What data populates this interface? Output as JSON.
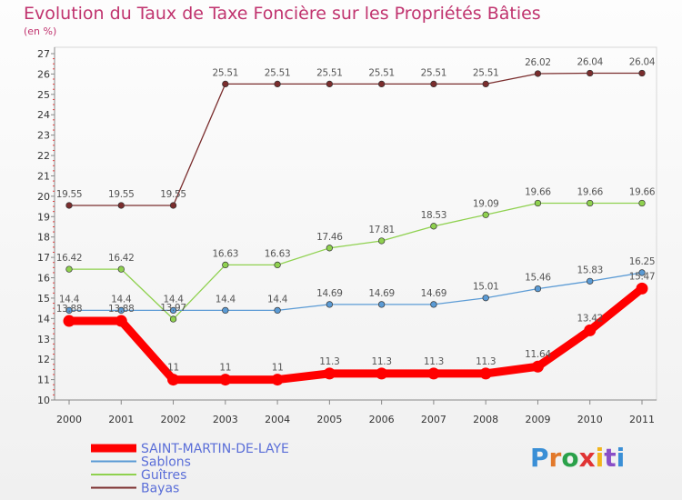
{
  "header": {
    "title": "Evolution du Taux de Taxe Foncière sur les Propriétés Bâties",
    "subtitle": "(en %)"
  },
  "brand": {
    "text": "Proxiti",
    "letter_colors": [
      "#3a8fd6",
      "#e2792b",
      "#2aa14a",
      "#e03434",
      "#f2b51c",
      "#8a4fc7",
      "#3a8fd6"
    ]
  },
  "chart_data": {
    "type": "line",
    "title": "Evolution du Taux de Taxe Foncière sur les Propriétés Bâties",
    "ylabel": "(en %)",
    "xlabel": "",
    "x": [
      "2000",
      "2001",
      "2002",
      "2003",
      "2004",
      "2005",
      "2006",
      "2007",
      "2008",
      "2009",
      "2010",
      "2011"
    ],
    "ylim": [
      10,
      27
    ],
    "yticks": [
      10,
      11,
      12,
      13,
      14,
      15,
      16,
      17,
      18,
      19,
      20,
      21,
      22,
      23,
      24,
      25,
      26,
      27
    ],
    "grid": false,
    "legend_position": "bottom-left",
    "series": [
      {
        "name": "SAINT-MARTIN-DE-LAYE",
        "color": "#ff0000",
        "values": [
          13.88,
          13.88,
          11,
          11,
          11,
          11.3,
          11.3,
          11.3,
          11.3,
          11.64,
          13.42,
          15.47
        ],
        "labels": [
          "13.88",
          "13.88",
          "11",
          "11",
          "11",
          "11.3",
          "11.3",
          "11.3",
          "11.3",
          "11.64",
          "13.42",
          "15.47"
        ]
      },
      {
        "name": "Sablons",
        "color": "#5b9bd5",
        "values": [
          14.4,
          14.4,
          14.4,
          14.4,
          14.4,
          14.69,
          14.69,
          14.69,
          15.01,
          15.46,
          15.83,
          16.25
        ],
        "labels": [
          "14.4",
          "14.4",
          "14.4",
          "14.4",
          "14.4",
          "14.69",
          "14.69",
          "14.69",
          "15.01",
          "15.46",
          "15.83",
          "16.25"
        ]
      },
      {
        "name": "Guîtres",
        "color": "#8fd14f",
        "values": [
          16.42,
          16.42,
          13.97,
          16.63,
          16.63,
          17.46,
          17.81,
          18.53,
          19.09,
          19.66,
          19.66,
          19.66
        ],
        "labels": [
          "16.42",
          "16.42",
          "13.97",
          "16.63",
          "16.63",
          "17.46",
          "17.81",
          "18.53",
          "19.09",
          "19.66",
          "19.66",
          "19.66"
        ]
      },
      {
        "name": "Bayas",
        "color": "#7a2d2d",
        "values": [
          19.55,
          19.55,
          19.55,
          25.51,
          25.51,
          25.51,
          25.51,
          25.51,
          25.51,
          26.02,
          26.04,
          26.04
        ],
        "labels": [
          "19.55",
          "19.55",
          "19.55",
          "25.51",
          "25.51",
          "25.51",
          "25.51",
          "25.51",
          "25.51",
          "26.02",
          "26.04",
          "26.04"
        ]
      }
    ]
  }
}
